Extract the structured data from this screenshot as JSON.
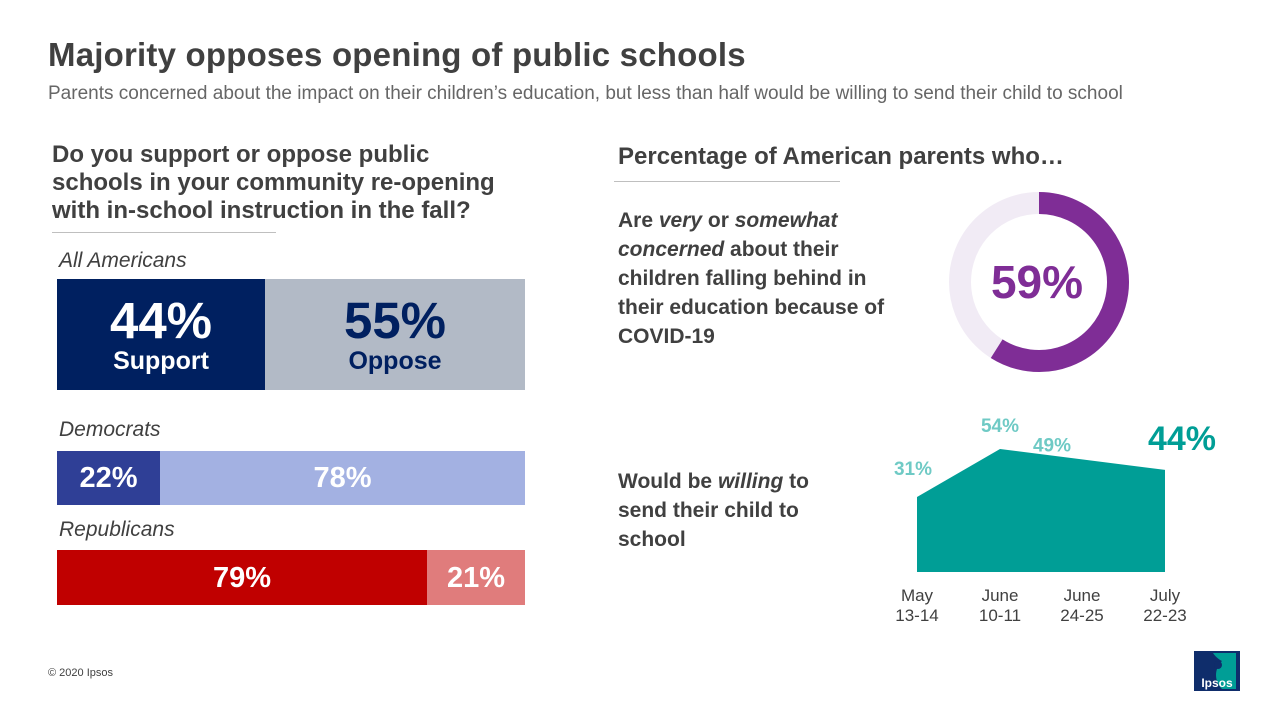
{
  "title": "Majority opposes opening of public schools",
  "subtitle": "Parents concerned about the impact on their children’s education, but less than half would be willing to send their child to school",
  "left": {
    "question_lines": [
      "Do you support or oppose public",
      "schools in your community re-opening",
      "with in-school instruction in the fall?"
    ]
  },
  "right": {
    "header": "Percentage of American parents who…",
    "concern": {
      "text_parts": [
        "Are ",
        "very",
        " or ",
        "somewhat",
        " ",
        "concerned",
        " about their children falling behind in their education because of COVID-19"
      ]
    },
    "willing": {
      "text_parts": [
        "Would be ",
        "willing",
        " to send their child to school"
      ]
    }
  },
  "footer": "© 2020 Ipsos",
  "logo_text": "Ipsos",
  "colors": {
    "all_support": "#002060",
    "all_oppose": "#b2bac6",
    "dem_support": "#2f3f96",
    "dem_oppose": "#a3b1e2",
    "rep_support": "#c00000",
    "rep_oppose": "#e07c7c",
    "donut": "#7f2d96",
    "donut_track": "#f1ebf5",
    "area": "#009e96",
    "area_label": "#6fcac5"
  },
  "chart_data": [
    {
      "type": "bar",
      "stacked": true,
      "orientation": "horizontal",
      "categories": [
        "All Americans",
        "Democrats",
        "Republicans"
      ],
      "series": [
        {
          "name": "Support",
          "values": [
            44,
            22,
            79
          ]
        },
        {
          "name": "Oppose",
          "values": [
            55,
            78,
            21
          ]
        }
      ],
      "unit": "%"
    },
    {
      "type": "pie",
      "variant": "donut",
      "values": [
        59
      ],
      "label": "59%",
      "unit": "%"
    },
    {
      "type": "area",
      "categories": [
        "May 13-14",
        "June 10-11",
        "June 24-25",
        "July 22-23"
      ],
      "x_labels": [
        [
          "May",
          "13-14"
        ],
        [
          "June",
          "10-11"
        ],
        [
          "June",
          "24-25"
        ],
        [
          "July",
          "22-23"
        ]
      ],
      "values": [
        31,
        54,
        49,
        44
      ],
      "labels": [
        "31%",
        "54%",
        "49%",
        "44%"
      ],
      "unit": "%"
    }
  ]
}
